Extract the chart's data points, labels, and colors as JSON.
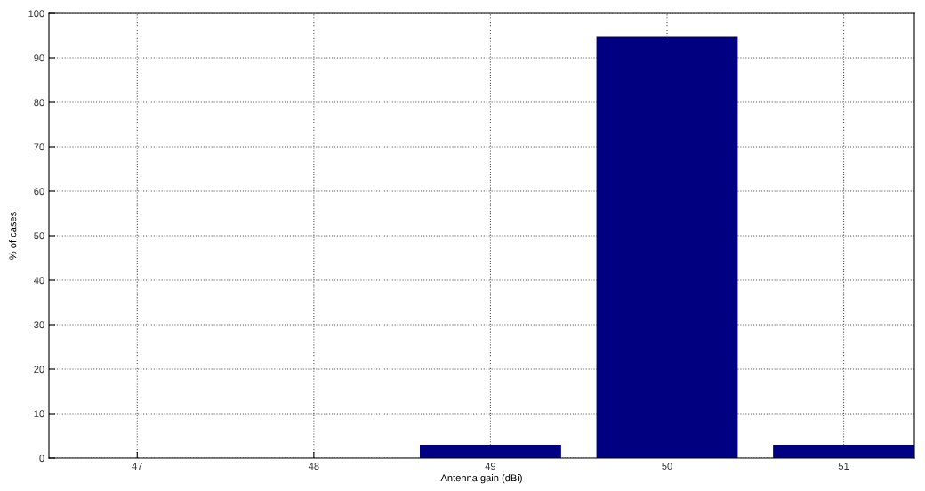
{
  "chart_data": {
    "type": "bar",
    "xlabel": "Antenna gain (dBi)",
    "ylabel": "% of cases",
    "x": [
      47,
      48,
      49,
      50,
      51
    ],
    "values": [
      0,
      0,
      3,
      94.7,
      3
    ],
    "color": "#000080",
    "xlim": [
      46.5,
      51.4
    ],
    "xticks": [
      47,
      48,
      49,
      50,
      51
    ],
    "ylim": [
      0,
      100
    ],
    "yticks": [
      0,
      10,
      20,
      30,
      40,
      50,
      60,
      70,
      80,
      90,
      100
    ],
    "grid": true
  }
}
